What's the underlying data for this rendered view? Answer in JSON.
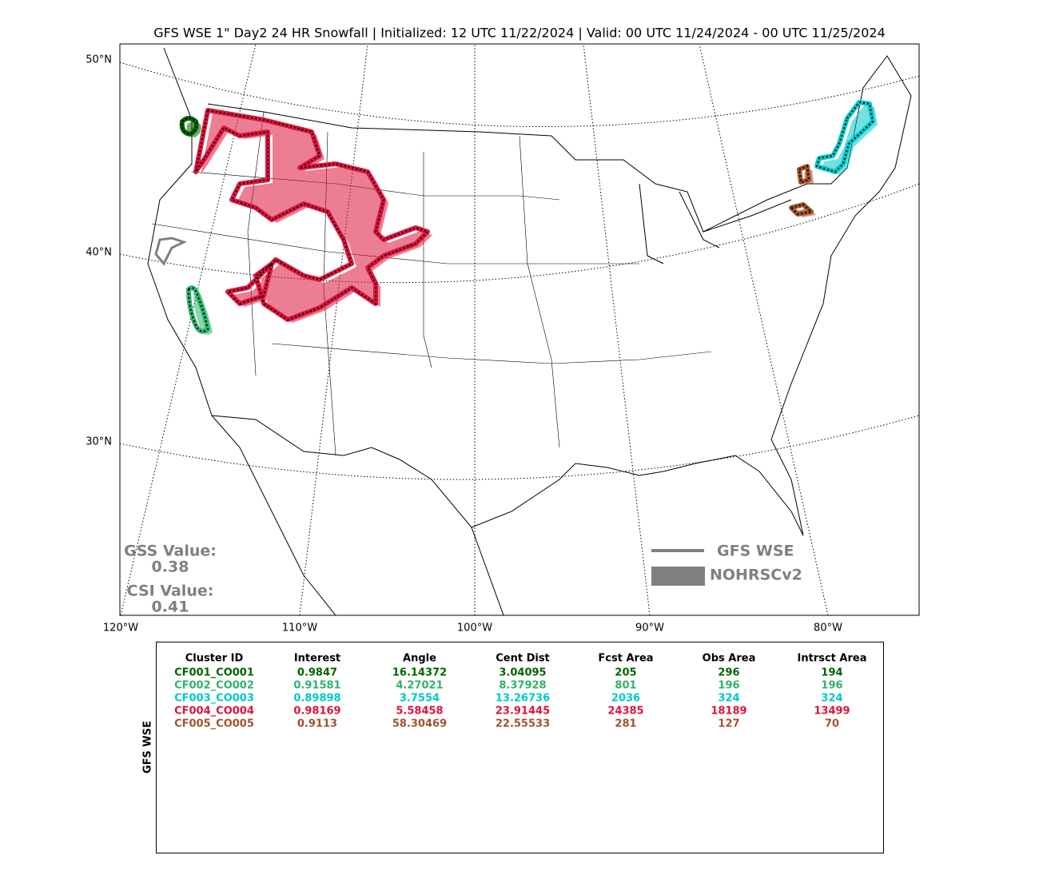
{
  "title": "GFS WSE 1\" Day2 24 HR Snowfall | Initialized: 12 UTC 11/22/2024 | Valid: 00 UTC 11/24/2024 - 00 UTC 11/25/2024",
  "map": {
    "lat_labels": [
      "50°N",
      "40°N",
      "30°N"
    ],
    "lon_labels": [
      "120°W",
      "110°W",
      "100°W",
      "90°W",
      "80°W"
    ]
  },
  "scores": [
    {
      "label": "GSS Value:",
      "value": "0.38"
    },
    {
      "label": "CSI Value:",
      "value": "0.41"
    }
  ],
  "legend": [
    "GFS WSE",
    "NOHRSCv2"
  ],
  "table": {
    "side_label": "GFS WSE",
    "columns": [
      "Cluster ID",
      "Interest",
      "Angle",
      "Cent Dist",
      "Fcst Area",
      "Obs Area",
      "Intrsct Area"
    ],
    "rows": [
      {
        "color": "#006400",
        "cells": [
          "CF001_CO001",
          "0.9847",
          "16.14372",
          "3.04095",
          "205",
          "296",
          "194"
        ]
      },
      {
        "color": "#2eb36b",
        "cells": [
          "CF002_CO002",
          "0.91581",
          "4.27021",
          "8.37928",
          "801",
          "196",
          "196"
        ]
      },
      {
        "color": "#00c8c8",
        "cells": [
          "CF003_CO003",
          "0.89898",
          "3.7554",
          "13.26736",
          "2036",
          "324",
          "324"
        ]
      },
      {
        "color": "#dc143c",
        "cells": [
          "CF004_CO004",
          "0.98169",
          "5.58458",
          "23.91445",
          "24385",
          "18189",
          "13499"
        ]
      },
      {
        "color": "#a0522d",
        "cells": [
          "CF005_CO005",
          "0.9113",
          "58.30469",
          "22.55533",
          "281",
          "127",
          "70"
        ]
      }
    ]
  }
}
